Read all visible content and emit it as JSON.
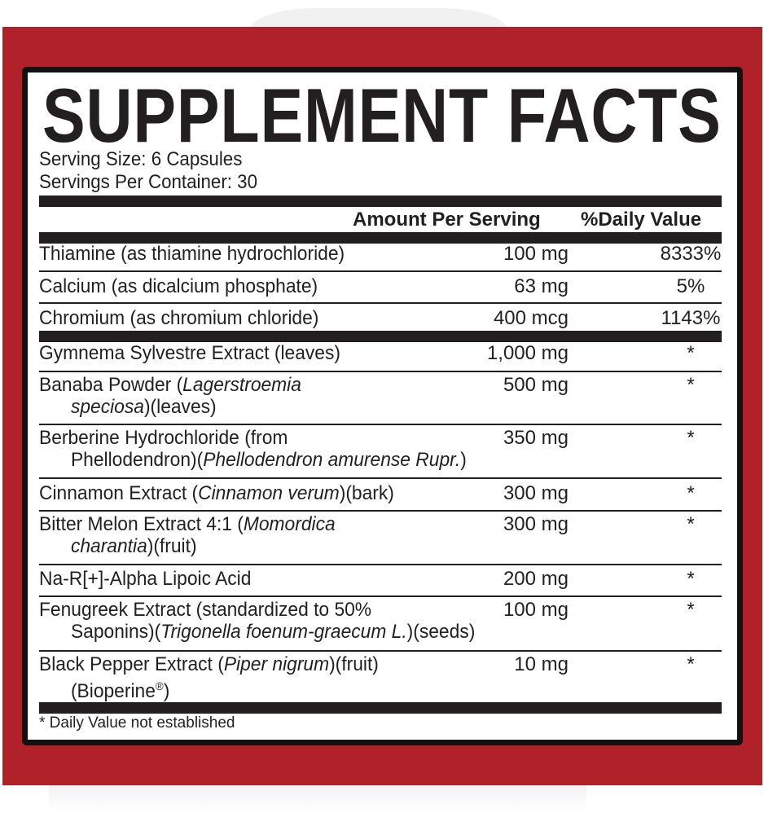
{
  "title": "SUPPLEMENT FACTS",
  "serving_size": "Serving Size: 6 Capsules",
  "servings_per_container": "Servings Per Container: 30",
  "header": {
    "amount": "Amount Per Serving",
    "daily_value": "%Daily Value"
  },
  "colors": {
    "background_red": "#b0212a",
    "ink": "#231f20"
  },
  "rows": [
    {
      "lines": [
        [
          {
            "t": "Thiamine (as thiamine hydrochloride)"
          }
        ]
      ],
      "amount": "100 mg",
      "dv": "8333%"
    },
    {
      "lines": [
        [
          {
            "t": "Calcium (as dicalcium phosphate)"
          }
        ]
      ],
      "amount": "63 mg",
      "dv": "5%"
    },
    {
      "lines": [
        [
          {
            "t": "Chromium (as chromium chloride)"
          }
        ]
      ],
      "amount": "400 mcg",
      "dv": "1143%"
    },
    {
      "lines": [
        [
          {
            "t": "Gymnema Sylvestre Extract (leaves)"
          }
        ]
      ],
      "amount": "1,000 mg",
      "dv": "*"
    },
    {
      "lines": [
        [
          {
            "t": "Banaba Powder ("
          },
          {
            "t": "Lagerstroemia",
            "i": true
          }
        ],
        [
          {
            "t": "speciosa",
            "i": true
          },
          {
            "t": ")(leaves)"
          }
        ]
      ],
      "amount": "500 mg",
      "dv": "*"
    },
    {
      "lines": [
        [
          {
            "t": "Berberine Hydrochloride (from"
          }
        ],
        [
          {
            "t": "Phellodendron)("
          },
          {
            "t": "Phellodendron amurense Rupr.",
            "i": true
          },
          {
            "t": ")"
          }
        ]
      ],
      "amount": "350 mg",
      "dv": "*"
    },
    {
      "lines": [
        [
          {
            "t": "Cinnamon Extract ("
          },
          {
            "t": "Cinnamon verum",
            "i": true
          },
          {
            "t": ")(bark)"
          }
        ]
      ],
      "amount": "300 mg",
      "dv": "*"
    },
    {
      "lines": [
        [
          {
            "t": "Bitter Melon Extract 4:1 ("
          },
          {
            "t": "Momordica",
            "i": true
          }
        ],
        [
          {
            "t": "charantia",
            "i": true
          },
          {
            "t": ")(fruit)"
          }
        ]
      ],
      "amount": "300 mg",
      "dv": "*"
    },
    {
      "lines": [
        [
          {
            "t": "Na-R[+]-Alpha Lipoic Acid"
          }
        ]
      ],
      "amount": "200 mg",
      "dv": "*"
    },
    {
      "lines": [
        [
          {
            "t": "Fenugreek Extract (standardized to 50%"
          }
        ],
        [
          {
            "t": "Saponins)("
          },
          {
            "t": "Trigonella foenum-graecum L.",
            "i": true
          },
          {
            "t": ")(seeds)"
          }
        ]
      ],
      "amount": "100 mg",
      "dv": "*"
    },
    {
      "lines": [
        [
          {
            "t": "Black Pepper Extract ("
          },
          {
            "t": "Piper nigrum",
            "i": true
          },
          {
            "t": ")(fruit)"
          }
        ],
        [
          {
            "t": "(Bioperine"
          },
          {
            "t": "®",
            "sup": true
          },
          {
            "t": ")"
          }
        ]
      ],
      "amount": "10 mg",
      "dv": "*"
    }
  ],
  "footnote": "* Daily Value not established"
}
